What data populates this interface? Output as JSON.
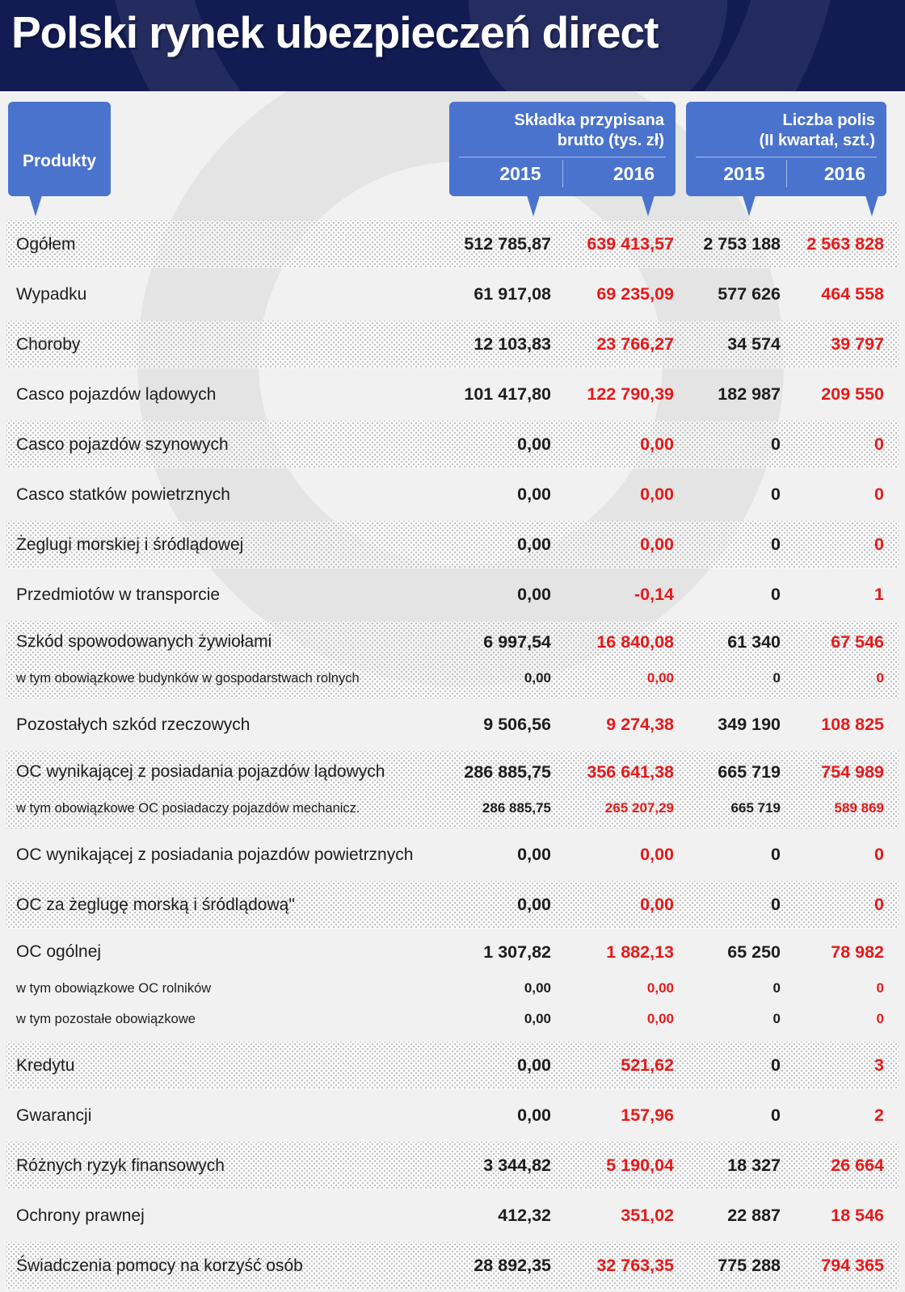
{
  "title": "Polski rynek ubezpieczeń direct",
  "colors": {
    "header_navy": "#131b53",
    "bubble_blue": "#4a73ce",
    "value_2015": "#1d1d1d",
    "value_2016": "#e8191a",
    "page_background": "#f1f1f1"
  },
  "header": {
    "products_label": "Produkty",
    "groups": [
      {
        "title_line1": "Składka przypisana",
        "title_line2": "brutto (tys. zł)",
        "year_left": "2015",
        "year_right": "2016"
      },
      {
        "title_line1": "Liczba polis",
        "title_line2": "(II kwartał, szt.)",
        "year_left": "2015",
        "year_right": "2016"
      }
    ]
  },
  "chart_data": {
    "type": "table",
    "title": "Polski rynek ubezpieczeń direct",
    "column_groups": [
      "Składka przypisana brutto (tys. zł)",
      "Liczba polis (II kwartał, szt.)"
    ],
    "columns": [
      "Produkty",
      "Składka 2015",
      "Składka 2016",
      "Polisy 2015",
      "Polisy 2016"
    ],
    "rows": [
      {
        "label": "Ogółem",
        "striped": true,
        "values": [
          "512 785,87",
          "639 413,57",
          "2 753 188",
          "2 563 828"
        ],
        "sub": []
      },
      {
        "label": "Wypadku",
        "striped": false,
        "values": [
          "61 917,08",
          "69 235,09",
          "577 626",
          "464 558"
        ],
        "sub": []
      },
      {
        "label": "Choroby",
        "striped": true,
        "values": [
          "12 103,83",
          "23 766,27",
          "34 574",
          "39 797"
        ],
        "sub": []
      },
      {
        "label": "Casco pojazdów lądowych",
        "striped": false,
        "values": [
          "101 417,80",
          "122 790,39",
          "182 987",
          "209 550"
        ],
        "sub": []
      },
      {
        "label": "Casco pojazdów szynowych",
        "striped": true,
        "values": [
          "0,00",
          "0,00",
          "0",
          "0"
        ],
        "sub": []
      },
      {
        "label": "Casco statków powietrznych",
        "striped": false,
        "values": [
          "0,00",
          "0,00",
          "0",
          "0"
        ],
        "sub": []
      },
      {
        "label": "Żeglugi morskiej i śródlądowej",
        "striped": true,
        "values": [
          "0,00",
          "0,00",
          "0",
          "0"
        ],
        "sub": []
      },
      {
        "label": "Przedmiotów w transporcie",
        "striped": false,
        "values": [
          "0,00",
          "-0,14",
          "0",
          "1"
        ],
        "sub": []
      },
      {
        "label": "Szkód spowodowanych żywiołami",
        "striped": true,
        "values": [
          "6 997,54",
          "16 840,08",
          "61 340",
          "67 546"
        ],
        "sub": [
          {
            "label": "w tym obowiązkowe budynków w gospodarstwach rolnych",
            "values": [
              "0,00",
              "0,00",
              "0",
              "0"
            ]
          }
        ]
      },
      {
        "label": "Pozostałych szkód rzeczowych",
        "striped": false,
        "values": [
          "9 506,56",
          "9 274,38",
          "349 190",
          "108 825"
        ],
        "sub": []
      },
      {
        "label": "OC wynikającej z posiadania pojazdów lądowych",
        "striped": true,
        "values": [
          "286 885,75",
          "356 641,38",
          "665 719",
          "754 989"
        ],
        "sub": [
          {
            "label": "w tym obowiązkowe OC posiadaczy pojazdów mechanicz.",
            "values": [
              "286 885,75",
              "265 207,29",
              "665 719",
              "589 869"
            ]
          }
        ]
      },
      {
        "label": "OC wynikającej z posiadania pojazdów powietrznych",
        "striped": false,
        "values": [
          "0,00",
          "0,00",
          "0",
          "0"
        ],
        "sub": []
      },
      {
        "label": "OC za żeglugę morską i śródlądową\"",
        "striped": true,
        "values": [
          "0,00",
          "0,00",
          "0",
          "0"
        ],
        "sub": []
      },
      {
        "label": "OC ogólnej",
        "striped": false,
        "values": [
          "1 307,82",
          "1 882,13",
          "65 250",
          "78 982"
        ],
        "sub": [
          {
            "label": "w tym obowiązkowe OC rolników",
            "values": [
              "0,00",
              "0,00",
              "0",
              "0"
            ]
          },
          {
            "label": "w tym pozostałe obowiązkowe",
            "values": [
              "0,00",
              "0,00",
              "0",
              "0"
            ]
          }
        ]
      },
      {
        "label": "Kredytu",
        "striped": true,
        "values": [
          "0,00",
          "521,62",
          "0",
          "3"
        ],
        "sub": []
      },
      {
        "label": "Gwarancji",
        "striped": false,
        "values": [
          "0,00",
          "157,96",
          "0",
          "2"
        ],
        "sub": []
      },
      {
        "label": "Różnych ryzyk finansowych",
        "striped": true,
        "values": [
          "3 344,82",
          "5 190,04",
          "18 327",
          "26 664"
        ],
        "sub": []
      },
      {
        "label": "Ochrony prawnej",
        "striped": false,
        "values": [
          "412,32",
          "351,02",
          "22 887",
          "18 546"
        ],
        "sub": []
      },
      {
        "label": "Świadczenia pomocy na korzyść osób",
        "striped": true,
        "values": [
          "28 892,35",
          "32 763,35",
          "775 288",
          "794 365"
        ],
        "sub": []
      }
    ]
  }
}
